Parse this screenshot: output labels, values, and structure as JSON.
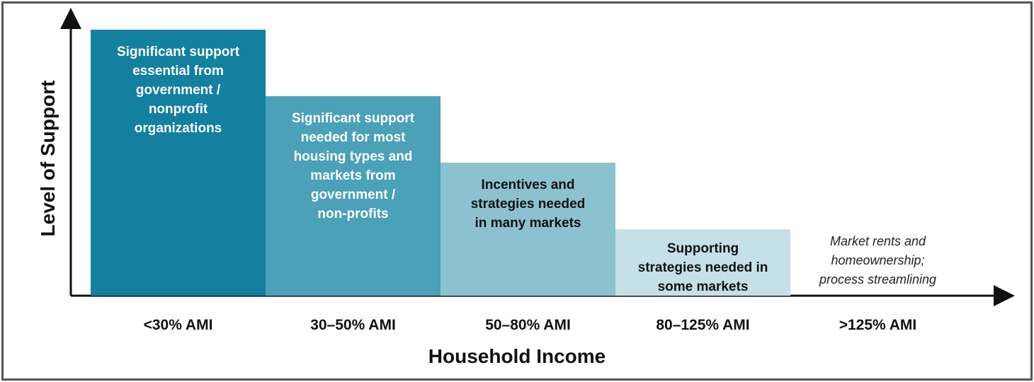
{
  "axes": {
    "y_label": "Level of Support",
    "x_label": "Household Income"
  },
  "tiers": [
    {
      "category": "<30% AMI",
      "lines": [
        "Significant support",
        "essential from",
        "government /",
        "nonprofit",
        "organizations"
      ]
    },
    {
      "category": "30–50% AMI",
      "lines": [
        "Significant support",
        "needed for most",
        "housing types and",
        "markets from",
        "government /",
        "non-profits"
      ]
    },
    {
      "category": "50–80% AMI",
      "lines": [
        "Incentives and",
        "strategies needed",
        "in many markets"
      ]
    },
    {
      "category": "80–125% AMI",
      "lines": [
        "Supporting",
        "strategies needed in",
        "some markets"
      ]
    },
    {
      "category": ">125% AMI",
      "lines": [
        "Market rents and",
        "homeownership;",
        "process streamlining"
      ]
    }
  ]
}
